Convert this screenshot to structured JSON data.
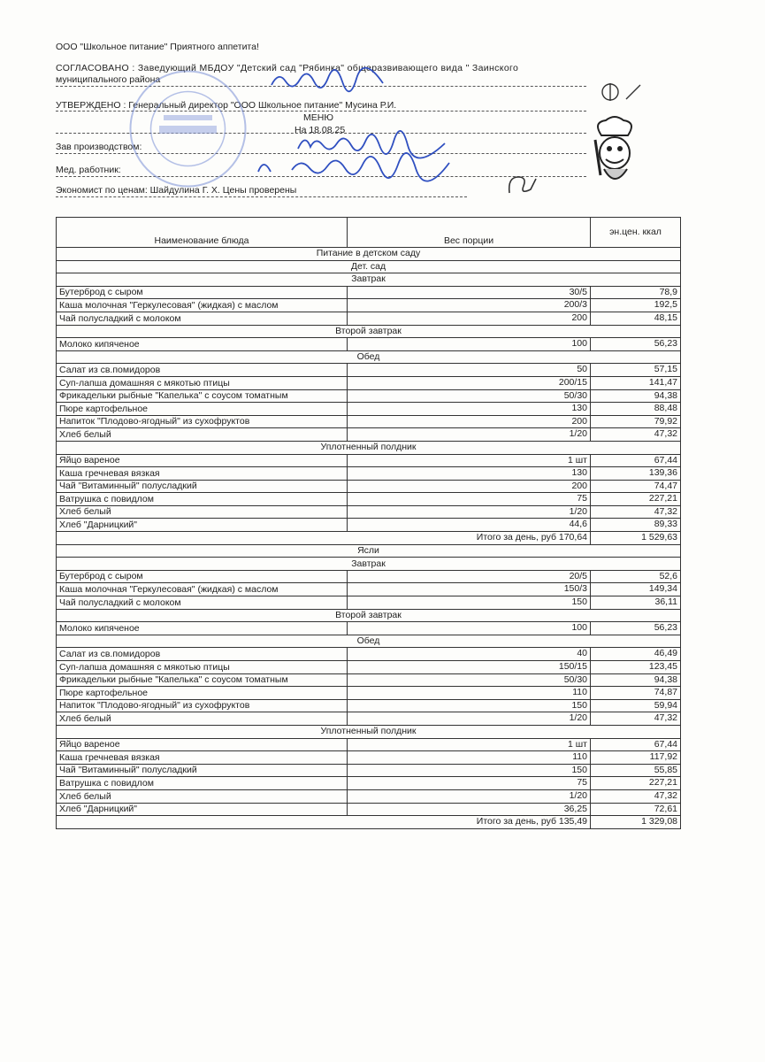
{
  "header": {
    "company": "ООО \"Школьное питание\" Приятного аппетита!",
    "agreed_line1": "СОГЛАСОВАНО : Заведующий МБДОУ \"Детский сад \"Рябинка\" общеразвивающего вида \" Заинского",
    "agreed_line2": "муниципального района",
    "approved": "УТВЕРЖДЕНО : Генеральный директор \"ООО Школьное питание\" Мусина Р.И.",
    "menu_title": "МЕНЮ",
    "menu_date": "На 18.08.25",
    "production_head": "Зав производством:",
    "medic": "Мед. работник:",
    "economist": "Экономист по ценам: Шайдулина Г. Х.   Цены проверены",
    "stamp_text": "ДЕТСКИЙ САД \"РЯБИНКА\""
  },
  "table": {
    "columns": [
      "Наименование блюда",
      "Вес порции",
      "эн.цен. ккал"
    ],
    "rows": [
      {
        "section": "Питание в детском саду"
      },
      {
        "section": "Дет. сад"
      },
      {
        "section": "Завтрак"
      },
      {
        "name": "Бутерброд с сыром",
        "weight": "30/5",
        "kcal": "78,9"
      },
      {
        "name": "Каша молочная \"Геркулесовая\" (жидкая) с маслом",
        "weight": "200/3",
        "kcal": "192,5"
      },
      {
        "name": "Чай полусладкий с молоком",
        "weight": "200",
        "kcal": "48,15"
      },
      {
        "section": "Второй завтрак"
      },
      {
        "name": "Молоко кипяченое",
        "weight": "100",
        "kcal": "56,23"
      },
      {
        "section": "Обед"
      },
      {
        "name": "Салат из св.помидоров",
        "weight": "50",
        "kcal": "57,15"
      },
      {
        "name": "Суп-лапша домашняя с мякотью птицы",
        "weight": "200/15",
        "kcal": "141,47"
      },
      {
        "name": "Фрикадельки рыбные \"Капелька\" с соусом томатным",
        "weight": "50/30",
        "kcal": "94,38"
      },
      {
        "name": "Пюре картофельное",
        "weight": "130",
        "kcal": "88,48"
      },
      {
        "name": "Напиток \"Плодово-ягодный\" из сухофруктов",
        "weight": "200",
        "kcal": "79,92"
      },
      {
        "name": "Хлеб белый",
        "weight": "1/20",
        "kcal": "47,32"
      },
      {
        "section": "Уплотненный полдник"
      },
      {
        "name": "Яйцо вареное",
        "weight": "1 шт",
        "kcal": "67,44"
      },
      {
        "name": "Каша гречневая вязкая",
        "weight": "130",
        "kcal": "139,36"
      },
      {
        "name": "Чай \"Витаминный\" полусладкий",
        "weight": "200",
        "kcal": "74,47"
      },
      {
        "name": "Ватрушка с повидлом",
        "weight": "75",
        "kcal": "227,21"
      },
      {
        "name": "Хлеб белый",
        "weight": "1/20",
        "kcal": "47,32"
      },
      {
        "name": "Хлеб \"Дарницкий\"",
        "weight": "44,6",
        "kcal": "89,33"
      },
      {
        "total": "Итого за день, руб 170,64",
        "kcal": "1 529,63"
      },
      {
        "section": "Ясли"
      },
      {
        "section": "Завтрак"
      },
      {
        "name": "Бутерброд с сыром",
        "weight": "20/5",
        "kcal": "52,6"
      },
      {
        "name": "Каша молочная \"Геркулесовая\" (жидкая) с маслом",
        "weight": "150/3",
        "kcal": "149,34"
      },
      {
        "name": "Чай полусладкий с молоком",
        "weight": "150",
        "kcal": "36,11"
      },
      {
        "section": "Второй завтрак"
      },
      {
        "name": "Молоко кипяченое",
        "weight": "100",
        "kcal": "56,23"
      },
      {
        "section": "Обед"
      },
      {
        "name": "Салат из св.помидоров",
        "weight": "40",
        "kcal": "46,49"
      },
      {
        "name": "Суп-лапша домашняя с мякотью птицы",
        "weight": "150/15",
        "kcal": "123,45"
      },
      {
        "name": "Фрикадельки рыбные \"Капелька\" с соусом томатным",
        "weight": "50/30",
        "kcal": "94,38"
      },
      {
        "name": "Пюре картофельное",
        "weight": "110",
        "kcal": "74,87"
      },
      {
        "name": "Напиток \"Плодово-ягодный\" из сухофруктов",
        "weight": "150",
        "kcal": "59,94"
      },
      {
        "name": "Хлеб белый",
        "weight": "1/20",
        "kcal": "47,32"
      },
      {
        "section": "Уплотненный полдник"
      },
      {
        "name": "Яйцо вареное",
        "weight": "1 шт",
        "kcal": "67,44"
      },
      {
        "name": "Каша гречневая вязкая",
        "weight": "110",
        "kcal": "117,92"
      },
      {
        "name": "Чай \"Витаминный\" полусладкий",
        "weight": "150",
        "kcal": "55,85"
      },
      {
        "name": "Ватрушка с повидлом",
        "weight": "75",
        "kcal": "227,21"
      },
      {
        "name": "Хлеб белый",
        "weight": "1/20",
        "kcal": "47,32"
      },
      {
        "name": "Хлеб \"Дарницкий\"",
        "weight": "36,25",
        "kcal": "72,61"
      },
      {
        "total": "Итого за день, руб 135,49",
        "kcal": "1 329,08"
      }
    ]
  }
}
